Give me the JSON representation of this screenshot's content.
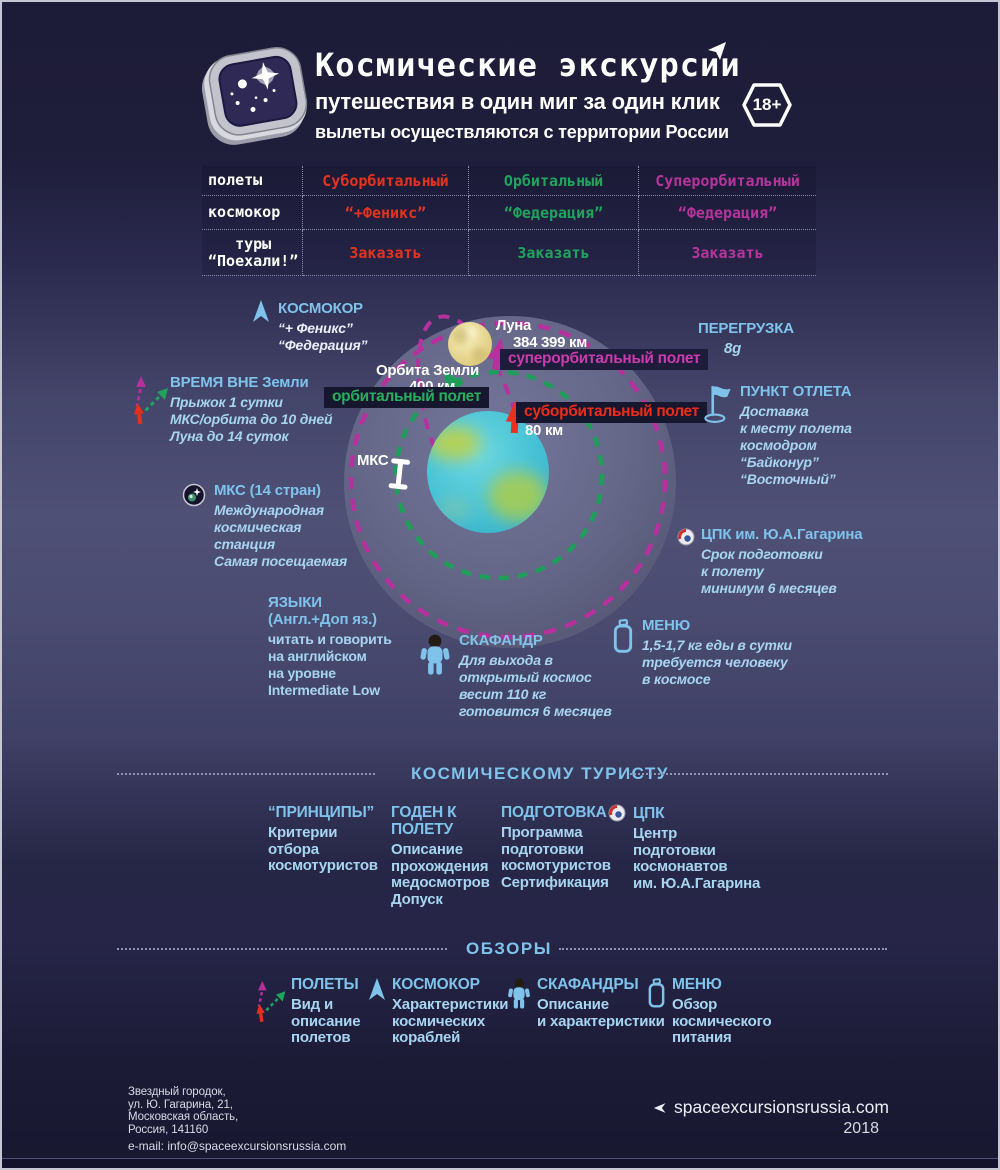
{
  "header": {
    "title": "Космические экскурсии",
    "subtitle1": "путешествия в один миг за один клик",
    "subtitle2": "вылеты осуществляются с территории России",
    "age_badge": "18+"
  },
  "table": {
    "row_labels": [
      "полеты",
      "космокор",
      "туры\n“Поехали!”"
    ],
    "flights": [
      "Суборбитальный",
      "Орбитальный",
      "Суперорбитальный"
    ],
    "ships": [
      "“+Феникс”",
      "“Федерация”",
      "“Федерация”"
    ],
    "order": [
      "Заказать",
      "Заказать",
      "Заказать"
    ]
  },
  "diagram": {
    "moon_label": "Луна",
    "moon_distance": "384 399 км",
    "orbit_label": "Орбита Земли",
    "orbit_altitude": "400 км",
    "suborbital_altitude": "80 км",
    "station_label": "МКС",
    "superorbital_flight": "суперорбитальный полет",
    "orbital_flight": "орбитальный полет",
    "suborbital_flight": "суборбитальный полет"
  },
  "facts": {
    "kosmokor": {
      "title": "КОСМОКОР",
      "lines": [
        "“+ Феникс”",
        "“Федерация”"
      ]
    },
    "time_outside": {
      "title": "ВРЕМЯ ВНЕ Земли",
      "lines": [
        "Прыжок  1 сутки",
        "МКС/орбита до 10 дней",
        "Луна до 14 суток"
      ]
    },
    "iss": {
      "title": "МКС (14 стран)",
      "lines": [
        "Международная",
        "космическая",
        "станция",
        "Самая посещаемая"
      ]
    },
    "languages": {
      "title": "ЯЗЫКИ",
      "subtitle": "(Англ.+Доп яз.)",
      "lines": [
        "читать и говорить",
        "на английском",
        "на уровне",
        "Intermediate Low"
      ]
    },
    "spacesuit": {
      "title": "СКАФАНДР",
      "lines": [
        "Для выхода в",
        "открытый космос",
        "весит 110 кг",
        "готовится 6 месяцев"
      ]
    },
    "menu": {
      "title": "МЕНЮ",
      "lines": [
        "1,5-1,7 кг еды в сутки",
        "требуется человеку",
        "в космосе"
      ]
    },
    "gforce": {
      "title": "ПЕРЕГРУЗКА",
      "value": "8g"
    },
    "departure": {
      "title": "ПУНКТ ОТЛЕТА",
      "lines": [
        "Доставка",
        "к месту полета",
        "космодром",
        "“Байконур”",
        "“Восточный”"
      ]
    },
    "cpk": {
      "title": "ЦПК им. Ю.А.Гагарина",
      "lines": [
        "Срок подготовки",
        "к полету",
        "минимум 6 месяцев"
      ]
    }
  },
  "tourist": {
    "heading": "КОСМИЧЕСКОМУ  ТУРИСТУ",
    "items": [
      {
        "title": "“ПРИНЦИПЫ”",
        "lines": [
          "Критерии",
          "отбора",
          "космотуристов"
        ]
      },
      {
        "title": "ГОДЕН К ПОЛЕТУ",
        "lines": [
          "Описание",
          "прохождения",
          "медосмотров",
          "Допуск"
        ]
      },
      {
        "title": "ПОДГОТОВКА",
        "lines": [
          "Программа",
          "подготовки",
          "космотуристов",
          "Сертификация"
        ]
      },
      {
        "title": "ЦПК",
        "lines": [
          "Центр",
          "подготовки",
          "космонавтов",
          "им. Ю.А.Гагарина"
        ]
      }
    ]
  },
  "reviews": {
    "heading": "ОБЗОРЫ",
    "items": [
      {
        "title": "ПОЛЕТЫ",
        "lines": [
          "Вид и",
          "описание",
          "полетов"
        ]
      },
      {
        "title": "КОСМОКОР",
        "lines": [
          "Характеристики",
          "космических",
          "кораблей"
        ]
      },
      {
        "title": "СКАФАНДРЫ",
        "lines": [
          "Описание",
          "и характеристики"
        ]
      },
      {
        "title": "МЕНЮ",
        "lines": [
          "Обзор",
          "космического",
          "питания"
        ]
      }
    ]
  },
  "footer": {
    "address": [
      "Звездный городок,",
      "ул. Ю. Гагарина, 21,",
      "Московская область,",
      "Россия, 141160"
    ],
    "email": "e-mail: info@spaceexcursionsrussia.com",
    "website": "spaceexcursionsrussia.com",
    "year": "2018"
  },
  "colors": {
    "suborbital": "#e6331d",
    "orbital": "#1fa45e",
    "superorbital": "#b5359c",
    "heading_blue": "#7fc3ea",
    "body_blue": "#a7d5f0"
  }
}
